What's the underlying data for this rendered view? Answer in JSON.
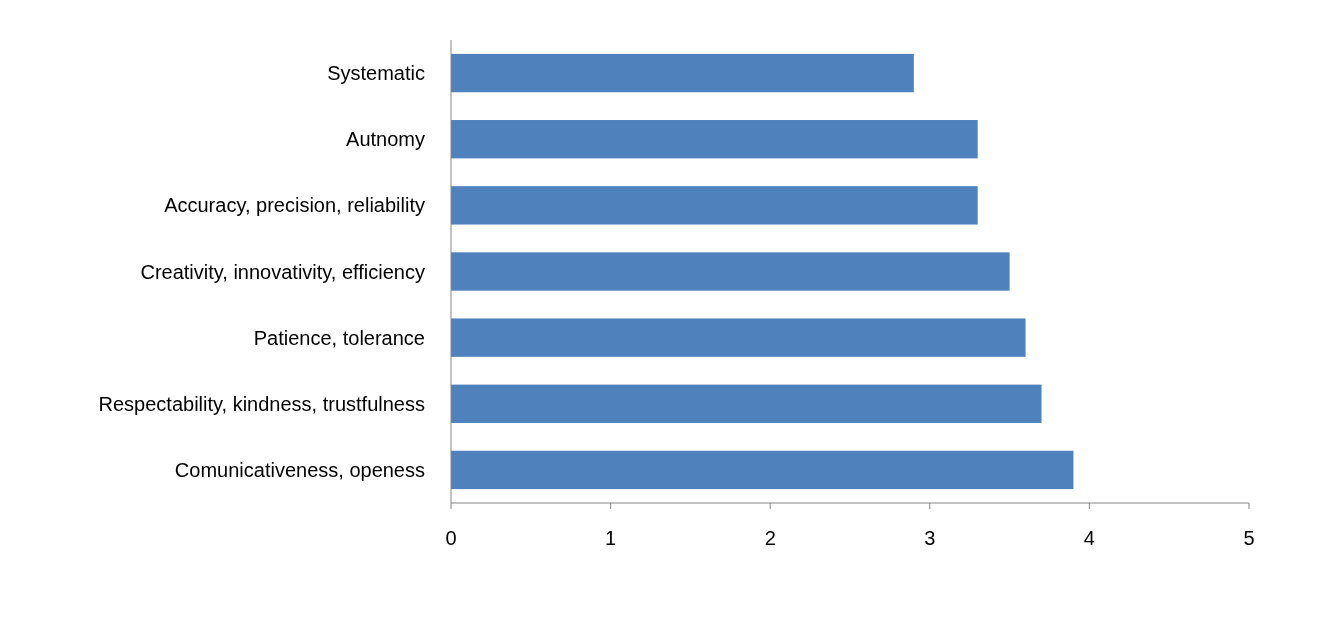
{
  "chart_data": {
    "type": "bar",
    "orientation": "horizontal",
    "categories": [
      "Systematic",
      "Autnomy",
      "Accuracy, precision, reliability",
      "Creativity, innovativity, efficiency",
      "Patience, tolerance",
      "Respectability, kindness, trustfulness",
      "Comunicativeness, openess"
    ],
    "values": [
      2.9,
      3.3,
      3.3,
      3.5,
      3.6,
      3.7,
      3.9
    ],
    "color": "#4f81bd",
    "xlim": [
      0,
      5
    ],
    "xticks": [
      0,
      1,
      2,
      3,
      4,
      5
    ],
    "grid": false
  }
}
